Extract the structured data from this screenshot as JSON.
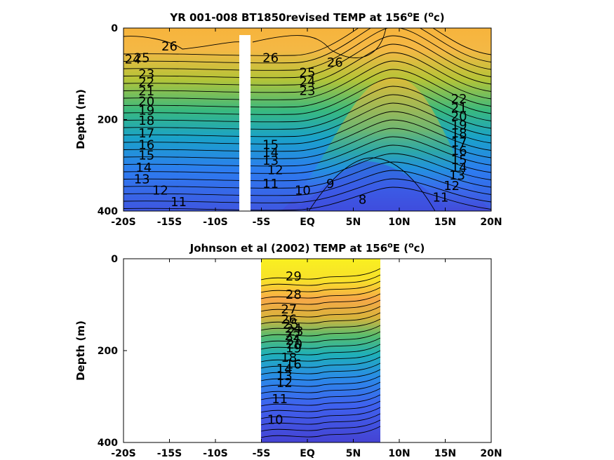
{
  "chart_data": [
    {
      "type": "heatmap",
      "subtype": "filled-contour",
      "title": "YR 001-008 BT1850revised TEMP at 156",
      "title_sup": "o",
      "title_tail": "E (",
      "title_sup2": "o",
      "title_end": "c)",
      "xlabel": "",
      "ylabel": "Depth (m)",
      "xlim": [
        -20,
        20
      ],
      "ylim": [
        400,
        0
      ],
      "xticks": [
        -20,
        -15,
        -10,
        -5,
        0,
        5,
        10,
        15,
        20
      ],
      "xtick_labels": [
        "-20S",
        "-15S",
        "-10S",
        "-5S",
        "EQ",
        "5N",
        "10N",
        "15N",
        "20N"
      ],
      "yticks": [
        0,
        200,
        400
      ],
      "ytick_labels": [
        "0",
        "200",
        "400"
      ],
      "data_x_range": [
        -20,
        20
      ],
      "mask_x_range": [
        -7,
        -6
      ],
      "contour_labels": [
        {
          "text": "26",
          "x": -15,
          "y": 40
        },
        {
          "text": "25",
          "x": -18,
          "y": 65
        },
        {
          "text": "24",
          "x": -19,
          "y": 68
        },
        {
          "text": "23",
          "x": -17.5,
          "y": 100
        },
        {
          "text": "22",
          "x": -17.5,
          "y": 118
        },
        {
          "text": "21",
          "x": -17.5,
          "y": 138
        },
        {
          "text": "20",
          "x": -17.5,
          "y": 160
        },
        {
          "text": "19",
          "x": -17.5,
          "y": 180
        },
        {
          "text": "18",
          "x": -17.5,
          "y": 202
        },
        {
          "text": "17",
          "x": -17.5,
          "y": 230
        },
        {
          "text": "16",
          "x": -17.5,
          "y": 255
        },
        {
          "text": "15",
          "x": -17.5,
          "y": 278
        },
        {
          "text": "14",
          "x": -17.8,
          "y": 305
        },
        {
          "text": "13",
          "x": -18,
          "y": 330
        },
        {
          "text": "12",
          "x": -16,
          "y": 355
        },
        {
          "text": "11",
          "x": -14,
          "y": 380
        },
        {
          "text": "26",
          "x": -4,
          "y": 65
        },
        {
          "text": "25",
          "x": 0,
          "y": 97
        },
        {
          "text": "24",
          "x": 0,
          "y": 117
        },
        {
          "text": "23",
          "x": 0,
          "y": 137
        },
        {
          "text": "26",
          "x": 3,
          "y": 75
        },
        {
          "text": "15",
          "x": -4,
          "y": 255
        },
        {
          "text": "14",
          "x": -4,
          "y": 272
        },
        {
          "text": "13",
          "x": -4,
          "y": 290
        },
        {
          "text": "12",
          "x": -3.5,
          "y": 310
        },
        {
          "text": "11",
          "x": -4,
          "y": 340
        },
        {
          "text": "10",
          "x": -0.5,
          "y": 355
        },
        {
          "text": "9",
          "x": 2.5,
          "y": 340
        },
        {
          "text": "8",
          "x": 6,
          "y": 375
        },
        {
          "text": "22",
          "x": 16.5,
          "y": 155
        },
        {
          "text": "21",
          "x": 16.5,
          "y": 175
        },
        {
          "text": "20",
          "x": 16.5,
          "y": 193
        },
        {
          "text": "19",
          "x": 16.5,
          "y": 212
        },
        {
          "text": "18",
          "x": 16.5,
          "y": 230
        },
        {
          "text": "17",
          "x": 16.5,
          "y": 250
        },
        {
          "text": "16",
          "x": 16.5,
          "y": 268
        },
        {
          "text": "15",
          "x": 16.5,
          "y": 288
        },
        {
          "text": "14",
          "x": 16.5,
          "y": 305
        },
        {
          "text": "13",
          "x": 16.3,
          "y": 322
        },
        {
          "text": "12",
          "x": 15.7,
          "y": 345
        },
        {
          "text": "11",
          "x": 14.5,
          "y": 370
        }
      ]
    },
    {
      "type": "heatmap",
      "subtype": "filled-contour",
      "title": "Johnson et al (2002) TEMP at 156",
      "title_sup": "o",
      "title_tail": "E (",
      "title_sup2": "o",
      "title_end": "c)",
      "xlabel": "",
      "ylabel": "Depth (m)",
      "xlim": [
        -20,
        20
      ],
      "ylim": [
        400,
        0
      ],
      "xticks": [
        -20,
        -15,
        -10,
        -5,
        0,
        5,
        10,
        15,
        20
      ],
      "xtick_labels": [
        "-20S",
        "-15S",
        "-10S",
        "-5S",
        "EQ",
        "5N",
        "10N",
        "15N",
        "20N"
      ],
      "yticks": [
        0,
        200,
        400
      ],
      "ytick_labels": [
        "0",
        "200",
        "400"
      ],
      "data_x_range": [
        -5,
        8
      ],
      "contour_labels": [
        {
          "text": "29",
          "x": -1.5,
          "y": 38
        },
        {
          "text": "28",
          "x": -1.5,
          "y": 78
        },
        {
          "text": "27",
          "x": -2,
          "y": 110
        },
        {
          "text": "26",
          "x": -2,
          "y": 132
        },
        {
          "text": "25",
          "x": -1.8,
          "y": 143
        },
        {
          "text": "24",
          "x": -1.5,
          "y": 152
        },
        {
          "text": "23",
          "x": -1.3,
          "y": 158
        },
        {
          "text": "22",
          "x": -1.6,
          "y": 168
        },
        {
          "text": "21",
          "x": -1.5,
          "y": 178
        },
        {
          "text": "20",
          "x": -1.4,
          "y": 186
        },
        {
          "text": "19",
          "x": -1.5,
          "y": 195
        },
        {
          "text": "18",
          "x": -2,
          "y": 215
        },
        {
          "text": "16",
          "x": -1.5,
          "y": 230
        },
        {
          "text": "14",
          "x": -2.5,
          "y": 240
        },
        {
          "text": "13",
          "x": -2.5,
          "y": 255
        },
        {
          "text": "12",
          "x": -2.5,
          "y": 270
        },
        {
          "text": "11",
          "x": -3,
          "y": 305
        },
        {
          "text": "10",
          "x": -3.5,
          "y": 350
        }
      ]
    }
  ]
}
